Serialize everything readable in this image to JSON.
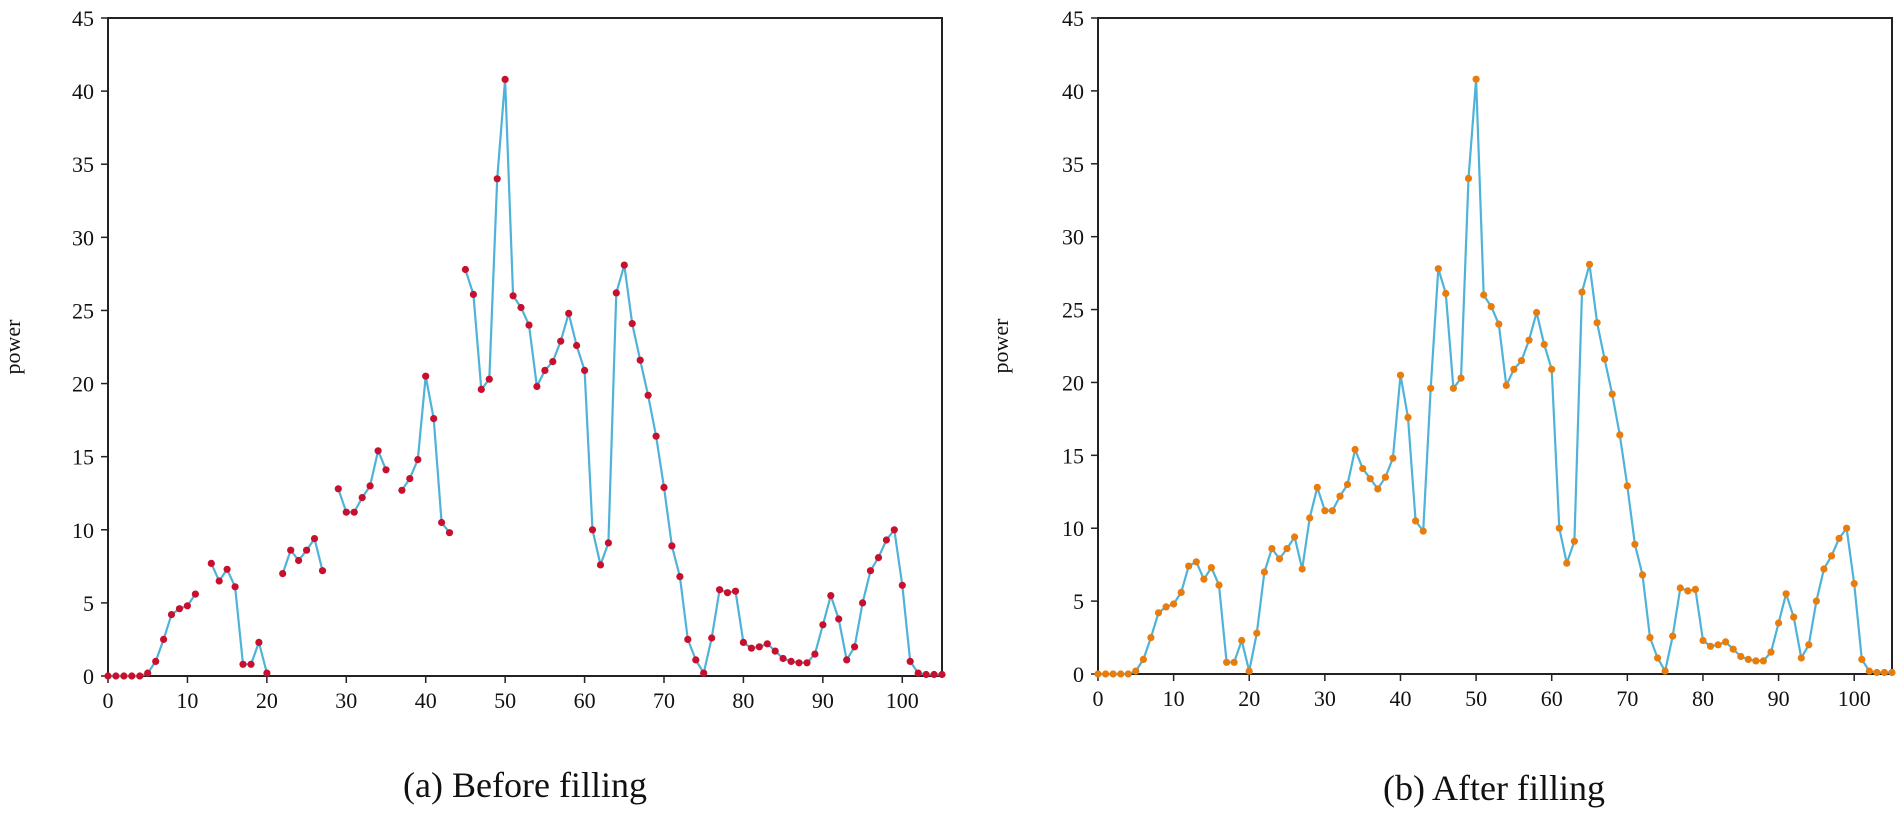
{
  "chart_data": [
    {
      "type": "line",
      "caption": "(a) Before filling",
      "ylabel": "power",
      "xlim": [
        0,
        105
      ],
      "ylim": [
        0,
        45
      ],
      "xticks": [
        0,
        10,
        20,
        30,
        40,
        50,
        60,
        70,
        80,
        90,
        100
      ],
      "yticks": [
        0,
        5,
        10,
        15,
        20,
        25,
        30,
        35,
        40,
        45
      ],
      "colors": {
        "line": "#4fb3d9",
        "marker": "#c8102e"
      },
      "series": [
        {
          "x": [
            0,
            1,
            2,
            3,
            4,
            5,
            6,
            7,
            8,
            9,
            10,
            11,
            13,
            14,
            15,
            16,
            17,
            18,
            19,
            20,
            22,
            23,
            24,
            25,
            26,
            27,
            29,
            30,
            31,
            32,
            33,
            34,
            35,
            37,
            38,
            39,
            40,
            41,
            42,
            43,
            45,
            46,
            47,
            48,
            49,
            50,
            51,
            52,
            53,
            54,
            55,
            56,
            57,
            58,
            59,
            60,
            61,
            62,
            63,
            64,
            65,
            66,
            67,
            68,
            69,
            70,
            71,
            72,
            73,
            74,
            75,
            76,
            77,
            78,
            79,
            80,
            81,
            82,
            83,
            84,
            85,
            86,
            87,
            88,
            89,
            90,
            91,
            92,
            93,
            94,
            95,
            96,
            97,
            98,
            99,
            100,
            101,
            102,
            103,
            104,
            105
          ],
          "y": [
            0,
            0,
            0,
            0,
            0,
            0.2,
            1,
            2.5,
            4.2,
            4.6,
            4.8,
            5.6,
            7.7,
            6.5,
            7.3,
            6.1,
            0.8,
            0.8,
            2.3,
            0.2,
            7,
            8.6,
            7.9,
            8.6,
            9.4,
            7.2,
            12.8,
            11.2,
            11.2,
            12.2,
            13,
            15.4,
            14.1,
            12.7,
            13.5,
            14.8,
            20.5,
            17.6,
            10.5,
            9.8,
            27.8,
            26.1,
            19.6,
            20.3,
            34,
            40.8,
            26,
            25.2,
            24,
            19.8,
            20.9,
            21.5,
            22.9,
            24.8,
            22.6,
            20.9,
            10,
            7.6,
            9.1,
            26.2,
            28.1,
            24.1,
            21.6,
            19.2,
            16.4,
            12.9,
            8.9,
            6.8,
            2.5,
            1.1,
            0.2,
            2.6,
            5.9,
            5.7,
            5.8,
            2.3,
            1.9,
            2,
            2.2,
            1.7,
            1.2,
            1,
            0.9,
            0.9,
            1.5,
            3.5,
            5.5,
            3.9,
            1.1,
            2,
            5,
            7.2,
            8.1,
            9.3,
            10,
            6.2,
            1,
            0.2,
            0.1,
            0.1,
            0.1
          ],
          "segments": [
            [
              0,
              11
            ],
            [
              13,
              20
            ],
            [
              22,
              27
            ],
            [
              29,
              35
            ],
            [
              37,
              43
            ],
            [
              45,
              105
            ]
          ]
        }
      ]
    },
    {
      "type": "line",
      "caption": "(b) After filling",
      "ylabel": "power",
      "xlim": [
        0,
        105
      ],
      "ylim": [
        0,
        45
      ],
      "xticks": [
        0,
        10,
        20,
        30,
        40,
        50,
        60,
        70,
        80,
        90,
        100
      ],
      "yticks": [
        0,
        5,
        10,
        15,
        20,
        25,
        30,
        35,
        40,
        45
      ],
      "colors": {
        "line": "#4fb3d9",
        "marker": "#e87c0c"
      },
      "series": [
        {
          "x": [
            0,
            1,
            2,
            3,
            4,
            5,
            6,
            7,
            8,
            9,
            10,
            11,
            12,
            13,
            14,
            15,
            16,
            17,
            18,
            19,
            20,
            21,
            22,
            23,
            24,
            25,
            26,
            27,
            28,
            29,
            30,
            31,
            32,
            33,
            34,
            35,
            36,
            37,
            38,
            39,
            40,
            41,
            42,
            43,
            44,
            45,
            46,
            47,
            48,
            49,
            50,
            51,
            52,
            53,
            54,
            55,
            56,
            57,
            58,
            59,
            60,
            61,
            62,
            63,
            64,
            65,
            66,
            67,
            68,
            69,
            70,
            71,
            72,
            73,
            74,
            75,
            76,
            77,
            78,
            79,
            80,
            81,
            82,
            83,
            84,
            85,
            86,
            87,
            88,
            89,
            90,
            91,
            92,
            93,
            94,
            95,
            96,
            97,
            98,
            99,
            100,
            101,
            102,
            103,
            104,
            105
          ],
          "y": [
            0,
            0,
            0,
            0,
            0,
            0.2,
            1,
            2.5,
            4.2,
            4.6,
            4.8,
            5.6,
            7.4,
            7.7,
            6.5,
            7.3,
            6.1,
            0.8,
            0.8,
            2.3,
            0.2,
            2.8,
            7,
            8.6,
            7.9,
            8.6,
            9.4,
            7.2,
            10.7,
            12.8,
            11.2,
            11.2,
            12.2,
            13,
            15.4,
            14.1,
            13.4,
            12.7,
            13.5,
            14.8,
            20.5,
            17.6,
            10.5,
            9.8,
            19.6,
            27.8,
            26.1,
            19.6,
            20.3,
            34,
            40.8,
            26,
            25.2,
            24,
            19.8,
            20.9,
            21.5,
            22.9,
            24.8,
            22.6,
            20.9,
            10,
            7.6,
            9.1,
            26.2,
            28.1,
            24.1,
            21.6,
            19.2,
            16.4,
            12.9,
            8.9,
            6.8,
            2.5,
            1.1,
            0.2,
            2.6,
            5.9,
            5.7,
            5.8,
            2.3,
            1.9,
            2,
            2.2,
            1.7,
            1.2,
            1,
            0.9,
            0.9,
            1.5,
            3.5,
            5.5,
            3.9,
            1.1,
            2,
            5,
            7.2,
            8.1,
            9.3,
            10,
            6.2,
            1,
            0.2,
            0.1,
            0.1,
            0.1
          ],
          "segments": [
            [
              0,
              105
            ]
          ]
        }
      ]
    }
  ]
}
